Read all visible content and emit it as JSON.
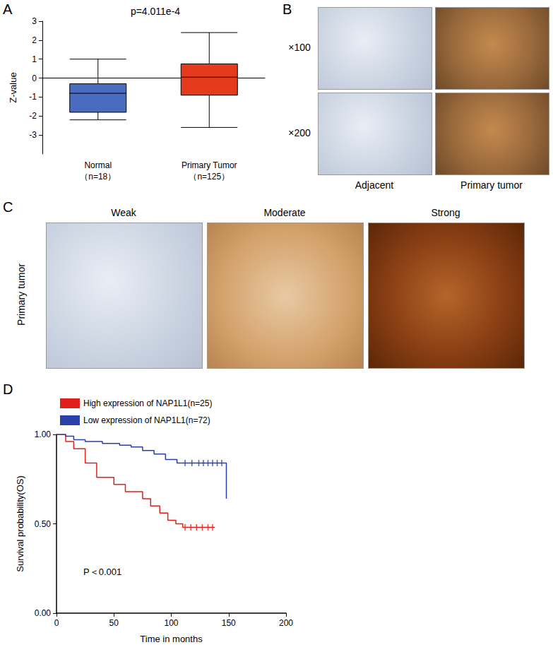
{
  "panel_labels": [
    "A",
    "B",
    "C",
    "D"
  ],
  "chart_data": [
    {
      "type": "boxplot",
      "title": "p=4.011e-4",
      "y_label": "Z-value",
      "categories": [
        "Normal\n（n=18）",
        "Primary Tumor\n（n=125）"
      ],
      "colors": [
        "#4a6cc0",
        "#e53a1c"
      ],
      "values": [
        [
          -2.2,
          -1.8,
          -0.8,
          -0.3,
          1.0
        ],
        [
          -2.6,
          -0.9,
          0.05,
          0.75,
          2.4
        ]
      ],
      "ylim": [
        -4,
        3
      ],
      "yticks": [
        -3,
        -2,
        -1,
        0,
        1,
        2,
        3
      ],
      "grid": false
    },
    {
      "type": "line",
      "line_style": "step",
      "x_label": "Time in months",
      "y_label": "Survival probability(OS)",
      "annotation": "P＜0.001",
      "legend": "top-left",
      "series": [
        {
          "name": "High expression of NAP1L1(n=25)",
          "color": "#e0201b",
          "x": [
            0,
            8,
            15,
            25,
            35,
            50,
            60,
            75,
            82,
            90,
            97,
            104,
            110,
            138
          ],
          "values": [
            1.0,
            0.96,
            0.92,
            0.84,
            0.76,
            0.72,
            0.68,
            0.64,
            0.6,
            0.56,
            0.52,
            0.5,
            0.48,
            0.48
          ],
          "censored": [
            112,
            117,
            122,
            127,
            132,
            136
          ]
        },
        {
          "name": "Low expression of NAP1L1(n=72)",
          "color": "#2a3fa8",
          "x": [
            0,
            8,
            15,
            25,
            40,
            55,
            65,
            75,
            85,
            95,
            105,
            148
          ],
          "values": [
            1.0,
            0.99,
            0.97,
            0.96,
            0.95,
            0.94,
            0.93,
            0.91,
            0.89,
            0.86,
            0.84,
            0.64
          ],
          "censored": [
            112,
            118,
            124,
            128,
            132,
            136,
            140,
            144
          ]
        }
      ],
      "xlim": [
        0,
        200
      ],
      "xticks": [
        0,
        50,
        100,
        150,
        200
      ],
      "ylim": [
        0,
        1
      ],
      "yticks": [
        {
          "value": 0,
          "label": "0.00"
        },
        {
          "value": 0.5,
          "label": "0.50"
        },
        {
          "value": 1,
          "label": "1.00"
        }
      ],
      "grid": false
    }
  ],
  "images": {
    "B": {
      "rows": [
        "×100",
        "×200"
      ],
      "columns": [
        "Adjacent",
        "Primary tumor"
      ]
    },
    "C": {
      "row": "Primary tumor",
      "columns": [
        "Weak",
        "Moderate",
        "Strong"
      ]
    }
  }
}
